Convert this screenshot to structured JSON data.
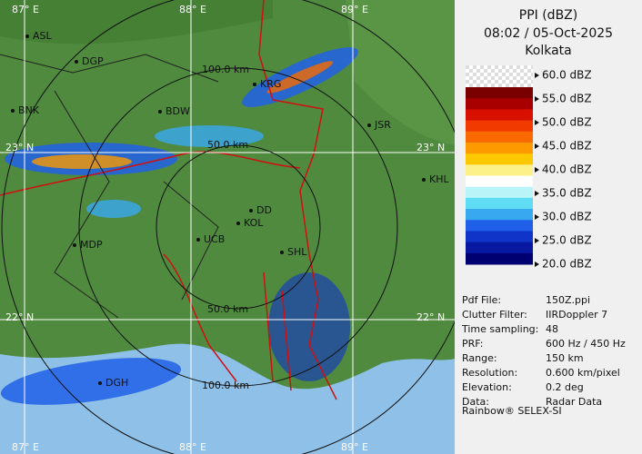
{
  "header": {
    "title": "PPI (dBZ)",
    "datetime": "08:02 / 05-Oct-2025",
    "site": "Kolkata"
  },
  "scale": {
    "labels": [
      "60.0 dBZ",
      "55.0 dBZ",
      "50.0 dBZ",
      "45.0 dBZ",
      "40.0 dBZ",
      "35.0 dBZ",
      "30.0 dBZ",
      "25.0 dBZ",
      "20.0 dBZ"
    ],
    "colors": [
      "#7a0000",
      "#a80000",
      "#d81000",
      "#f03a00",
      "#f86a00",
      "#fc9a00",
      "#fcc800",
      "#fcf088",
      "#ffffff",
      "#b8f4f8",
      "#60dcf4",
      "#38a8f0",
      "#2060e8",
      "#1034c8",
      "#0818a0",
      "#000070"
    ]
  },
  "map": {
    "grid_labels": [
      "87° E",
      "88° E",
      "89° E",
      "23° N",
      "23° N",
      "22° N",
      "22° N",
      "87° E",
      "88° E",
      "89° E"
    ],
    "ring_labels": [
      "100.0 km",
      "50.0 km",
      "50.0 km",
      "100.0 km"
    ],
    "cities": [
      "ASL",
      "DGP",
      "KRG",
      "BNK",
      "BDW",
      "JSR",
      "KHL",
      "DD",
      "KOL",
      "UCB",
      "MDP",
      "SHL",
      "DGH"
    ]
  },
  "info": {
    "rows": [
      [
        "Pdf File:",
        "150Z.ppi"
      ],
      [
        "Clutter Filter:",
        "IIRDoppler 7"
      ],
      [
        "Time sampling:",
        "48"
      ],
      [
        "PRF:",
        "600 Hz / 450 Hz"
      ],
      [
        "Range:",
        "150 km"
      ],
      [
        "Resolution:",
        "0.600 km/pixel"
      ],
      [
        "Elevation:",
        "0.2 deg"
      ],
      [
        "Data:",
        "Radar Data"
      ]
    ],
    "footer": "Rainbow® SELEX-SI"
  }
}
